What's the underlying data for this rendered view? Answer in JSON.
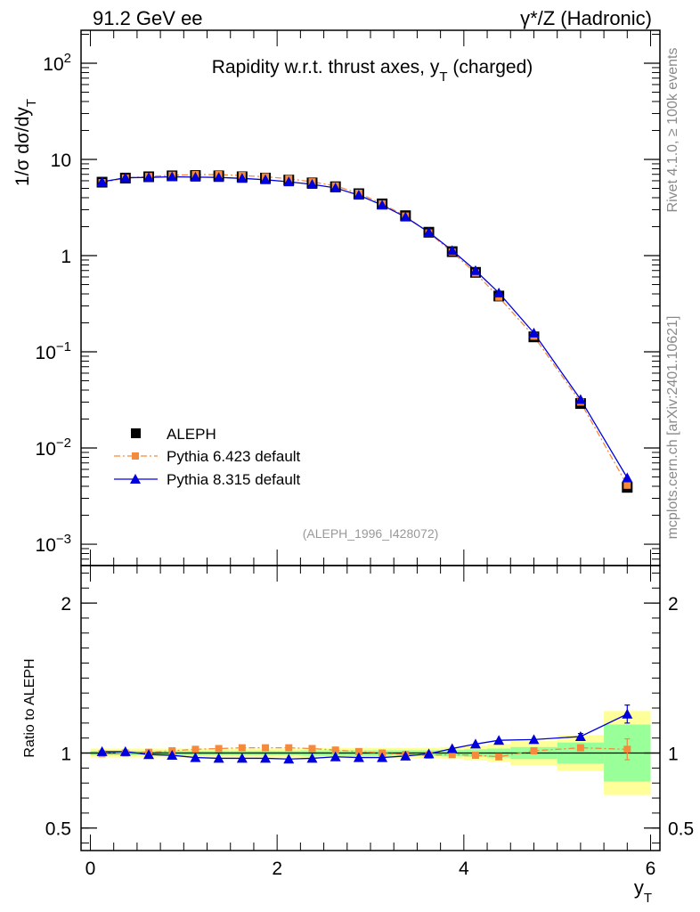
{
  "header": {
    "left": "91.2 GeV ee",
    "right": "γ*/Z (Hadronic)"
  },
  "side_labels": {
    "rivet": "Rivet 4.1.0, ≥ 100k events",
    "mcplots": "mcplots.cern.ch [arXiv:2401.10621]"
  },
  "chart_data": [
    {
      "type": "scatter",
      "panel": "main",
      "title": "Rapidity w.r.t. thrust axes, y_T (charged)",
      "title_parts": {
        "a": "Rapidity w.r.t. thrust axes, y",
        "sub": "T",
        "b": " (charged)"
      },
      "ylabel": "1/σ  dσ/dy_T",
      "ylabel_parts": {
        "main": "1/σ  dσ/dy",
        "sub": "T"
      },
      "yscale": "log",
      "ylim": [
        0.0006,
        220
      ],
      "xlim": [
        -0.1,
        6.1
      ],
      "yticks": [
        {
          "value": 100,
          "base": "10",
          "exp": "2"
        },
        {
          "value": 10,
          "base": "10",
          "exp": ""
        },
        {
          "value": 1,
          "base": "1",
          "exp": ""
        },
        {
          "value": 0.1,
          "base": "10",
          "exp": "−1"
        },
        {
          "value": 0.01,
          "base": "10",
          "exp": "−2"
        },
        {
          "value": 0.001,
          "base": "10",
          "exp": "−3"
        }
      ],
      "reference": "(ALEPH_1996_I428072)",
      "legend_position": "lower-left",
      "x": [
        0.125,
        0.375,
        0.625,
        0.875,
        1.125,
        1.375,
        1.625,
        1.875,
        2.125,
        2.375,
        2.625,
        2.875,
        3.125,
        3.375,
        3.625,
        3.875,
        4.125,
        4.375,
        4.75,
        5.25,
        5.75
      ],
      "series": [
        {
          "name": "ALEPH",
          "color": "#000000",
          "marker": "square",
          "values": [
            5.8,
            6.4,
            6.6,
            6.75,
            6.8,
            6.75,
            6.6,
            6.4,
            6.1,
            5.7,
            5.2,
            4.4,
            3.45,
            2.6,
            1.75,
            1.1,
            0.67,
            0.38,
            0.143,
            0.029,
            0.0039
          ]
        },
        {
          "name": "Pythia 6.423 default",
          "color": "#f58a3c",
          "marker": "square-small",
          "line": "dashdot",
          "values": [
            5.75,
            6.4,
            6.65,
            6.85,
            6.95,
            6.95,
            6.8,
            6.6,
            6.3,
            5.85,
            5.3,
            4.45,
            3.45,
            2.58,
            1.72,
            1.09,
            0.66,
            0.37,
            0.145,
            0.03,
            0.0041
          ]
        },
        {
          "name": "Pythia 8.315 default",
          "color": "#0000dd",
          "marker": "triangle",
          "line": "solid",
          "values": [
            5.85,
            6.45,
            6.5,
            6.6,
            6.55,
            6.5,
            6.35,
            6.15,
            5.85,
            5.5,
            5.05,
            4.25,
            3.35,
            2.52,
            1.75,
            1.13,
            0.7,
            0.41,
            0.157,
            0.032,
            0.0049
          ]
        }
      ]
    },
    {
      "type": "scatter",
      "panel": "ratio",
      "ylabel": "Ratio to ALEPH",
      "xlabel": "y_T",
      "xlabel_parts": {
        "main": "y",
        "sub": "T"
      },
      "yscale": "linear",
      "ylim": [
        0.35,
        2.25
      ],
      "xlim": [
        -0.1,
        6.1
      ],
      "xticks": [
        {
          "value": 0,
          "label": "0"
        },
        {
          "value": 2,
          "label": "2"
        },
        {
          "value": 4,
          "label": "4"
        },
        {
          "value": 6,
          "label": "6"
        }
      ],
      "yticks": [
        {
          "value": 0.5,
          "label": "0.5"
        },
        {
          "value": 1,
          "label": "1"
        },
        {
          "value": 2,
          "label": "2"
        }
      ],
      "bands": {
        "edges": [
          0,
          0.25,
          0.5,
          0.75,
          1.0,
          1.25,
          1.5,
          1.75,
          2.0,
          2.25,
          2.5,
          2.75,
          3.0,
          3.25,
          3.5,
          3.75,
          4.0,
          4.25,
          4.5,
          5.0,
          5.5,
          6.0
        ],
        "stat_syst_halfwidth": [
          0.03,
          0.03,
          0.03,
          0.03,
          0.03,
          0.03,
          0.03,
          0.03,
          0.03,
          0.035,
          0.035,
          0.035,
          0.035,
          0.035,
          0.035,
          0.04,
          0.05,
          0.06,
          0.08,
          0.12,
          0.28
        ],
        "inner_halfwidth": [
          0.015,
          0.015,
          0.015,
          0.015,
          0.015,
          0.015,
          0.015,
          0.015,
          0.015,
          0.018,
          0.018,
          0.018,
          0.018,
          0.018,
          0.018,
          0.02,
          0.025,
          0.03,
          0.04,
          0.07,
          0.19
        ],
        "outer_color": "#ffff99",
        "inner_color": "#99ff99"
      },
      "x": [
        0.125,
        0.375,
        0.625,
        0.875,
        1.125,
        1.375,
        1.625,
        1.875,
        2.125,
        2.375,
        2.625,
        2.875,
        3.125,
        3.375,
        3.625,
        3.875,
        4.125,
        4.375,
        4.75,
        5.25,
        5.75
      ],
      "series": [
        {
          "name": "Pythia 6.423 default",
          "color": "#f58a3c",
          "marker": "square-small",
          "line": "dashdot",
          "values": [
            0.995,
            1.0,
            1.005,
            1.015,
            1.025,
            1.03,
            1.035,
            1.035,
            1.035,
            1.03,
            1.02,
            1.01,
            1.0,
            0.99,
            0.985,
            0.99,
            0.985,
            0.975,
            1.015,
            1.035,
            1.025
          ],
          "errors": [
            0,
            0,
            0,
            0,
            0,
            0,
            0,
            0,
            0,
            0,
            0,
            0,
            0,
            0,
            0,
            0,
            0,
            0,
            0,
            0,
            0.07
          ]
        },
        {
          "name": "Pythia 8.315 default",
          "color": "#0000dd",
          "marker": "triangle",
          "line": "solid",
          "values": [
            1.01,
            1.01,
            0.99,
            0.985,
            0.97,
            0.965,
            0.965,
            0.965,
            0.96,
            0.965,
            0.975,
            0.97,
            0.97,
            0.98,
            0.995,
            1.03,
            1.06,
            1.085,
            1.09,
            1.11,
            1.26
          ],
          "errors": [
            0,
            0,
            0,
            0,
            0,
            0,
            0,
            0,
            0,
            0,
            0,
            0,
            0,
            0,
            0,
            0,
            0,
            0,
            0,
            0.02,
            0.06
          ]
        }
      ]
    }
  ]
}
